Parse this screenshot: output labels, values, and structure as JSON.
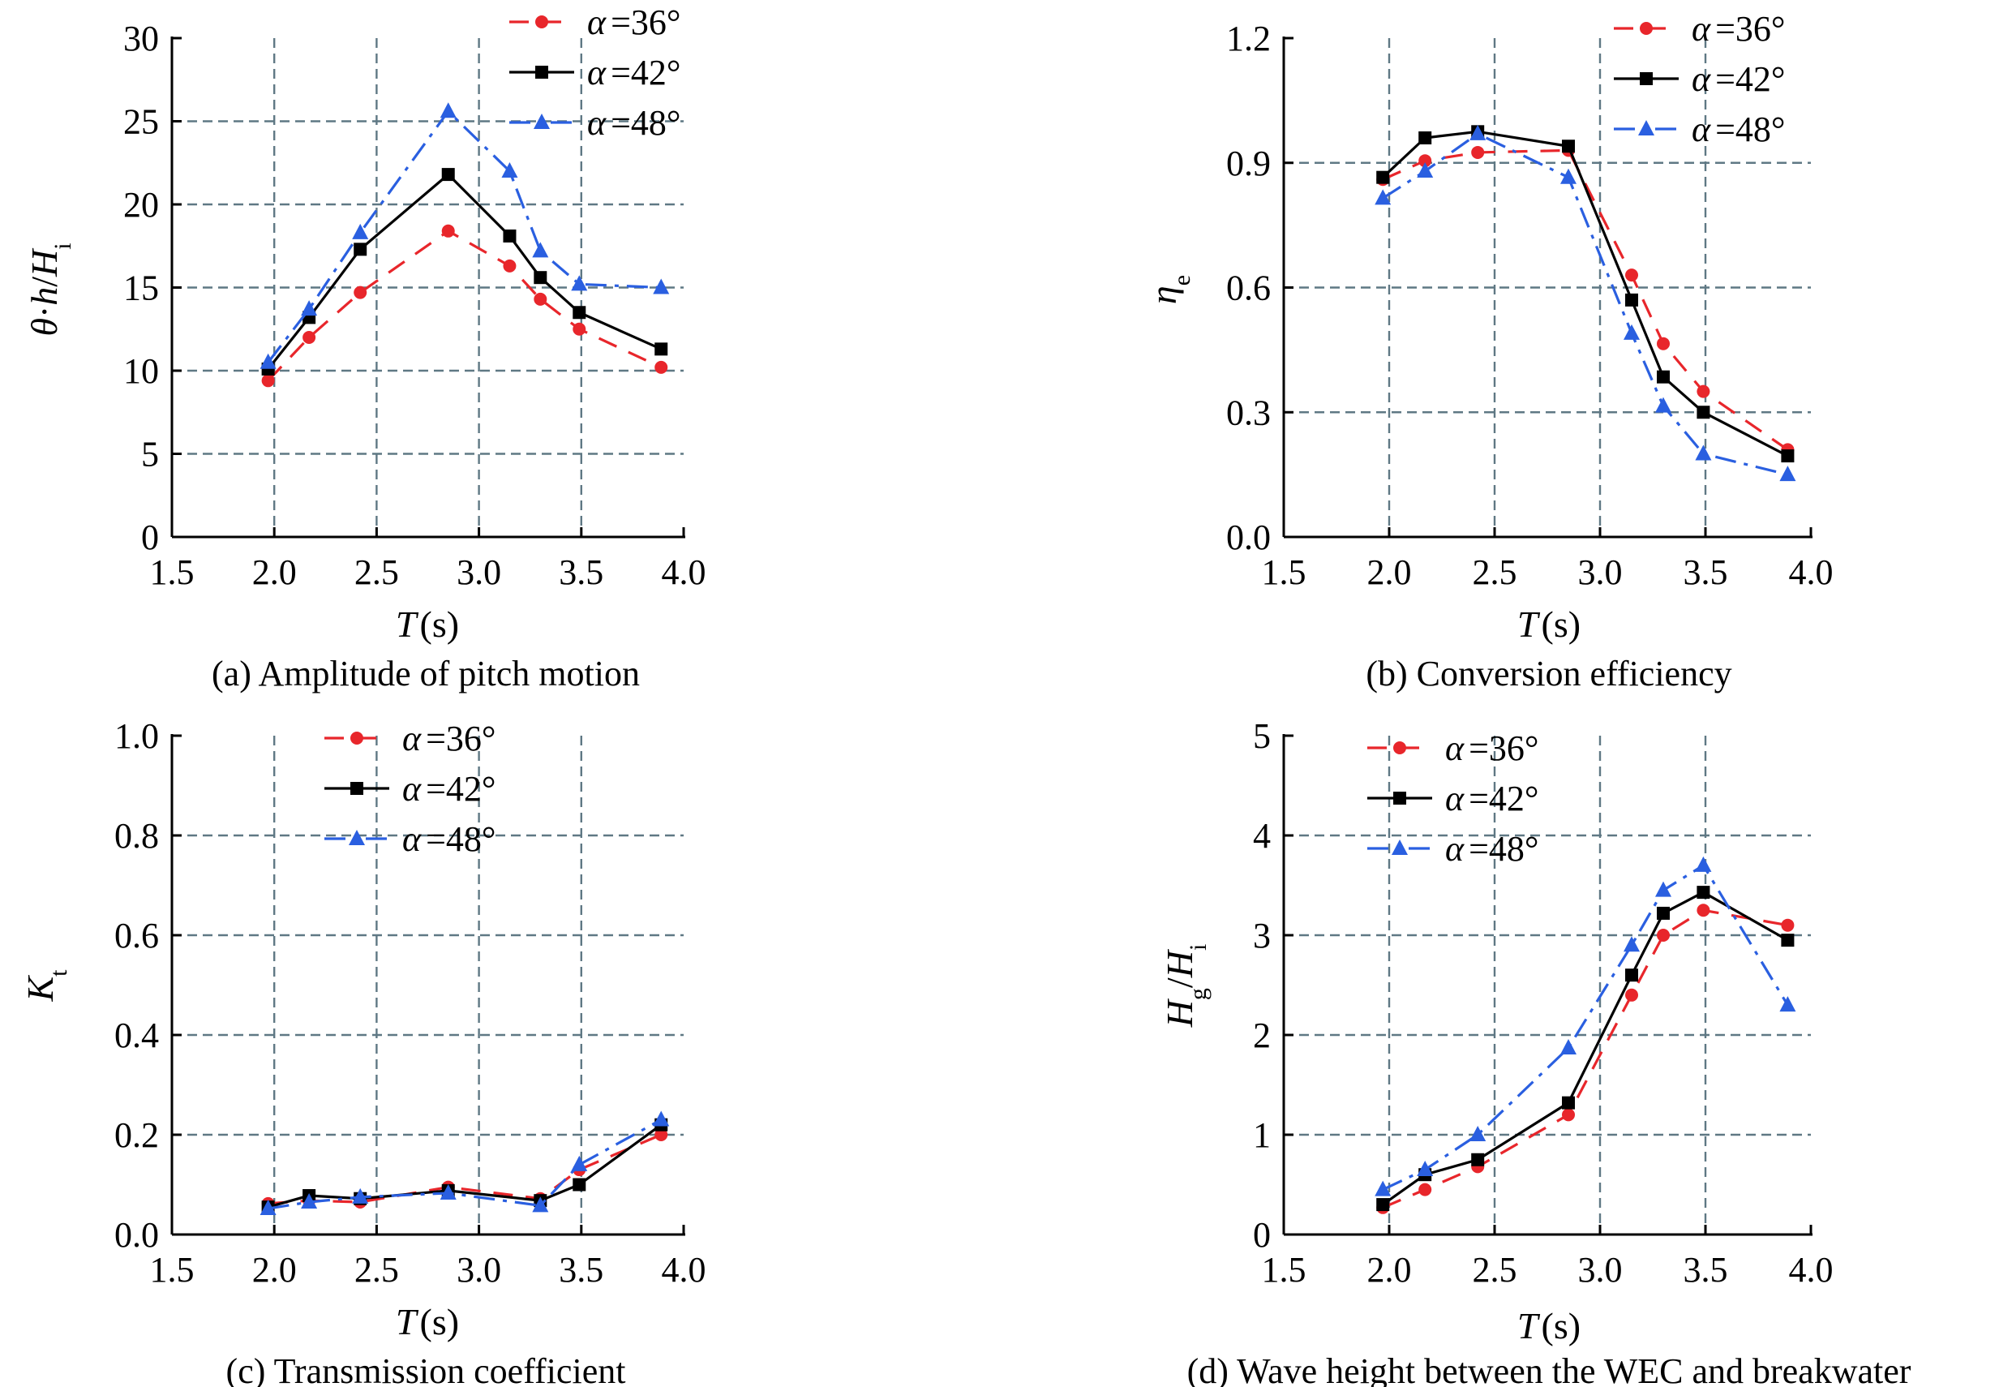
{
  "colors": {
    "36": "#e8262b",
    "42": "#000000",
    "48": "#2a5fe0"
  },
  "legend": [
    {
      "symbol": "α",
      "value": "=36°",
      "style": "dashed",
      "marker": "circle",
      "color_key": "36"
    },
    {
      "symbol": "α",
      "value": "=42°",
      "style": "solid",
      "marker": "square",
      "color_key": "42"
    },
    {
      "symbol": "α",
      "value": "=48°",
      "style": "dashdot",
      "marker": "triangle",
      "color_key": "48"
    }
  ],
  "chart_data": [
    {
      "id": "a",
      "type": "line",
      "caption": "(a) Amplitude of pitch motion",
      "xlabel": {
        "main": "T",
        "unit": "(s)"
      },
      "ylabel": {
        "parts": [
          {
            "t": "θ",
            "i": true
          },
          {
            "t": "·",
            "i": false
          },
          {
            "t": "h",
            "i": true
          },
          {
            "t": "/",
            "i": false
          },
          {
            "t": "H",
            "i": true
          },
          {
            "t": "i",
            "i": false,
            "sub": true
          }
        ]
      },
      "xlim": [
        1.5,
        4.0
      ],
      "ylim": [
        0,
        30
      ],
      "xticks": [
        1.5,
        2.0,
        2.5,
        3.0,
        3.5,
        4.0
      ],
      "xtick_labels": [
        "1.5",
        "2.0",
        "2.5",
        "3.0",
        "3.5",
        "4.0"
      ],
      "yticks": [
        0,
        5,
        10,
        15,
        20,
        25,
        30
      ],
      "ytick_labels": [
        "0",
        "5",
        "10",
        "15",
        "20",
        "25",
        "30"
      ],
      "vgrid": [
        2.0,
        2.5,
        3.0,
        3.5
      ],
      "hgrid": [
        5,
        10,
        15,
        20,
        25
      ],
      "x": [
        1.97,
        2.17,
        2.42,
        2.85,
        3.15,
        3.3,
        3.49,
        3.89
      ],
      "series": [
        {
          "name": "α =36°",
          "key": "36",
          "values": [
            9.4,
            12.0,
            14.7,
            18.4,
            16.3,
            14.3,
            12.5,
            10.2
          ]
        },
        {
          "name": "α =42°",
          "key": "42",
          "values": [
            10.1,
            13.2,
            17.3,
            21.8,
            18.1,
            15.6,
            13.5,
            11.3
          ]
        },
        {
          "name": "α =48°",
          "key": "48",
          "values": [
            10.5,
            13.7,
            18.3,
            25.6,
            22.0,
            17.2,
            15.2,
            15.0
          ]
        }
      ]
    },
    {
      "id": "b",
      "type": "line",
      "caption": "(b) Conversion efficiency",
      "xlabel": {
        "main": "T",
        "unit": "(s)"
      },
      "ylabel": {
        "parts": [
          {
            "t": "η",
            "i": true
          },
          {
            "t": "e",
            "i": false,
            "sub": true
          }
        ]
      },
      "xlim": [
        1.5,
        4.0
      ],
      "ylim": [
        0.0,
        1.2
      ],
      "xticks": [
        1.5,
        2.0,
        2.5,
        3.0,
        3.5,
        4.0
      ],
      "xtick_labels": [
        "1.5",
        "2.0",
        "2.5",
        "3.0",
        "3.5",
        "4.0"
      ],
      "yticks": [
        0.0,
        0.3,
        0.6,
        0.9,
        1.2
      ],
      "ytick_labels": [
        "0.0",
        "0.3",
        "0.6",
        "0.9",
        "1.2"
      ],
      "vgrid": [
        2.0,
        2.5,
        3.0,
        3.5
      ],
      "hgrid": [
        0.3,
        0.6,
        0.9
      ],
      "x": [
        1.97,
        2.17,
        2.42,
        2.85,
        3.15,
        3.3,
        3.49,
        3.89
      ],
      "series": [
        {
          "name": "α =36°",
          "key": "36",
          "values": [
            0.86,
            0.905,
            0.925,
            0.93,
            0.63,
            0.465,
            0.35,
            0.21
          ]
        },
        {
          "name": "α =42°",
          "key": "42",
          "values": [
            0.865,
            0.96,
            0.975,
            0.94,
            0.57,
            0.385,
            0.3,
            0.195
          ]
        },
        {
          "name": "α =48°",
          "key": "48",
          "values": [
            0.815,
            0.88,
            0.97,
            0.865,
            0.49,
            0.315,
            0.2,
            0.15
          ]
        }
      ]
    },
    {
      "id": "c",
      "type": "line",
      "caption": "(c) Transmission coefficient",
      "xlabel": {
        "main": "T",
        "unit": "(s)"
      },
      "ylabel": {
        "parts": [
          {
            "t": "K",
            "i": true
          },
          {
            "t": "t",
            "i": false,
            "sub": true
          }
        ]
      },
      "xlim": [
        1.5,
        4.0
      ],
      "ylim": [
        0.0,
        1.0
      ],
      "xticks": [
        1.5,
        2.0,
        2.5,
        3.0,
        3.5,
        4.0
      ],
      "xtick_labels": [
        "1.5",
        "2.0",
        "2.5",
        "3.0",
        "3.5",
        "4.0"
      ],
      "yticks": [
        0.0,
        0.2,
        0.4,
        0.6,
        0.8,
        1.0
      ],
      "ytick_labels": [
        "0.0",
        "0.2",
        "0.4",
        "0.6",
        "0.8",
        "1.0"
      ],
      "vgrid": [
        2.0,
        2.5,
        3.0,
        3.5
      ],
      "hgrid": [
        0.2,
        0.4,
        0.6,
        0.8
      ],
      "x": [
        1.97,
        2.17,
        2.42,
        2.85,
        3.3,
        3.49,
        3.89
      ],
      "series": [
        {
          "name": "α =36°",
          "key": "36",
          "values": [
            0.062,
            0.068,
            0.065,
            0.095,
            0.072,
            0.13,
            0.2
          ]
        },
        {
          "name": "α =42°",
          "key": "42",
          "values": [
            0.055,
            0.078,
            0.072,
            0.088,
            0.068,
            0.1,
            0.22
          ]
        },
        {
          "name": "α =48°",
          "key": "48",
          "values": [
            0.052,
            0.065,
            0.075,
            0.083,
            0.058,
            0.14,
            0.23
          ]
        }
      ]
    },
    {
      "id": "d",
      "type": "line",
      "caption": "(d) Wave height between the WEC and breakwater",
      "xlabel": {
        "main": "T",
        "unit": "(s)"
      },
      "ylabel": {
        "parts": [
          {
            "t": "H",
            "i": true
          },
          {
            "t": "g",
            "i": false,
            "sub": true
          },
          {
            "t": "/",
            "i": false
          },
          {
            "t": "H",
            "i": true
          },
          {
            "t": "i",
            "i": false,
            "sub": true
          }
        ]
      },
      "xlim": [
        1.5,
        4.0
      ],
      "ylim": [
        0,
        5
      ],
      "xticks": [
        1.5,
        2.0,
        2.5,
        3.0,
        3.5,
        4.0
      ],
      "xtick_labels": [
        "1.5",
        "2.0",
        "2.5",
        "3.0",
        "3.5",
        "4.0"
      ],
      "yticks": [
        0,
        1,
        2,
        3,
        4,
        5
      ],
      "ytick_labels": [
        "0",
        "1",
        "2",
        "3",
        "4",
        "5"
      ],
      "vgrid": [
        2.0,
        2.5,
        3.0,
        3.5
      ],
      "hgrid": [
        1,
        2,
        3,
        4
      ],
      "x": [
        1.97,
        2.17,
        2.42,
        2.85,
        3.15,
        3.3,
        3.49,
        3.89
      ],
      "series": [
        {
          "name": "α =36°",
          "key": "36",
          "values": [
            0.27,
            0.45,
            0.68,
            1.2,
            2.4,
            3.0,
            3.25,
            3.1
          ]
        },
        {
          "name": "α =42°",
          "key": "42",
          "values": [
            0.3,
            0.6,
            0.75,
            1.32,
            2.6,
            3.22,
            3.43,
            2.95
          ]
        },
        {
          "name": "α =48°",
          "key": "48",
          "values": [
            0.45,
            0.65,
            1.0,
            1.87,
            2.9,
            3.45,
            3.7,
            2.3
          ]
        }
      ]
    }
  ]
}
